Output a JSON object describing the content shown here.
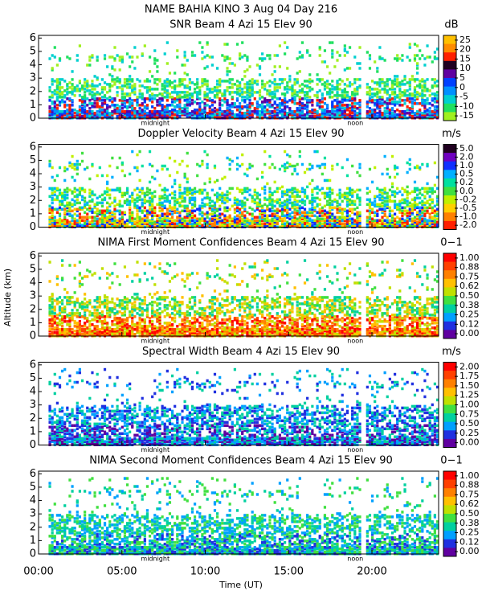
{
  "title": "NAME BAHIA KINO    3 Aug 04 Day 216",
  "xlabel": "Time (UT)",
  "ylabel": "Altitude (km)",
  "xlim": [
    0,
    24
  ],
  "xticks": [
    {
      "value": 0,
      "label": "00:00"
    },
    {
      "value": 5,
      "label": "05:00"
    },
    {
      "value": 10,
      "label": "10:00"
    },
    {
      "value": 15,
      "label": "15:00"
    },
    {
      "value": 20,
      "label": "20:00"
    }
  ],
  "chart_data": [
    {
      "type": "heatmap",
      "title": "SNR Beam 4 Azi   15 Elev 90",
      "colorbar_unit": "dB",
      "ylim": [
        0,
        6.2
      ],
      "yticks": [
        0,
        1,
        2,
        3,
        4,
        5,
        6
      ],
      "colorbar_ticks": [
        25,
        20,
        15,
        10,
        5,
        0,
        -5,
        -10,
        -15
      ],
      "colorbar_colors": [
        "#ffc000",
        "#ff8c00",
        "#ff2000",
        "#200020",
        "#6000a0",
        "#0040ff",
        "#0090ff",
        "#00d0d0",
        "#20e060",
        "#a0f020"
      ],
      "annotations": [
        {
          "text": "midnight",
          "x": 7
        },
        {
          "text": "noon",
          "x": 19
        }
      ]
    },
    {
      "type": "heatmap",
      "title": "Doppler Velocity Beam 4 Azi   15 Elev 90",
      "colorbar_unit": "m/s",
      "ylim": [
        0,
        6.2
      ],
      "yticks": [
        0,
        1,
        2,
        3,
        4,
        5,
        6
      ],
      "colorbar_ticks": [
        {
          "value": 5,
          "label": "5.0"
        },
        {
          "value": 2,
          "label": "2.0"
        },
        {
          "value": 1,
          "label": "1.0"
        },
        {
          "value": 0.5,
          "label": "0.5"
        },
        {
          "value": 0.2,
          "label": "0.2"
        },
        {
          "value": 0,
          "label": "0.0"
        },
        {
          "value": -0.2,
          "label": "-0.2"
        },
        {
          "value": -0.5,
          "label": "-0.5"
        },
        {
          "value": -1,
          "label": "-1.0"
        },
        {
          "value": -2,
          "label": "-2.0"
        }
      ],
      "colorbar_colors": [
        "#200020",
        "#7000c0",
        "#1030ff",
        "#00b0ff",
        "#00e0a0",
        "#40e040",
        "#c0f000",
        "#ffd000",
        "#ff8000",
        "#ff2000"
      ],
      "annotations": [
        {
          "text": "midnight",
          "x": 7
        },
        {
          "text": "noon",
          "x": 19
        }
      ]
    },
    {
      "type": "heatmap",
      "title": "NIMA First Moment Confidences Beam 4 Azi   15 Elev 90",
      "colorbar_unit": "0−1",
      "ylim": [
        0,
        6.2
      ],
      "yticks": [
        0,
        1,
        2,
        3,
        4,
        5,
        6
      ],
      "colorbar_ticks": [
        {
          "value": 1,
          "label": "1.00"
        },
        0.88,
        0.75,
        0.62,
        {
          "value": 0.5,
          "label": "0.50"
        },
        0.38,
        0.25,
        0.12,
        {
          "value": 0,
          "label": "0.00"
        }
      ],
      "colorbar_colors": [
        "#ff0000",
        "#ff4000",
        "#ff8000",
        "#ffc000",
        "#c0e000",
        "#40e040",
        "#00d0a0",
        "#00a0ff",
        "#2030e0",
        "#6000a0"
      ],
      "annotations": [
        {
          "text": "midnight",
          "x": 7
        },
        {
          "text": "noon",
          "x": 19
        }
      ]
    },
    {
      "type": "heatmap",
      "title": "Spectral Width Beam 4 Azi   15 Elev 90",
      "colorbar_unit": "m/s",
      "ylim": [
        0,
        6.2
      ],
      "yticks": [
        0,
        1,
        2,
        3,
        4,
        5,
        6
      ],
      "colorbar_ticks": [
        {
          "value": 2,
          "label": "2.00"
        },
        1.75,
        {
          "value": 1.5,
          "label": "1.50"
        },
        1.25,
        {
          "value": 1,
          "label": "1.00"
        },
        0.75,
        {
          "value": 0.5,
          "label": "0.50"
        },
        0.25,
        {
          "value": 0,
          "label": "0.00"
        }
      ],
      "colorbar_colors": [
        "#ff0000",
        "#ff4000",
        "#ff8000",
        "#ffc000",
        "#c0e000",
        "#40e040",
        "#00d0a0",
        "#00a0ff",
        "#2030e0",
        "#6000a0"
      ],
      "annotations": [
        {
          "text": "midnight",
          "x": 7
        },
        {
          "text": "noon",
          "x": 19
        }
      ]
    },
    {
      "type": "heatmap",
      "title": "NIMA Second Moment Confidences Beam 4 Azi   15 Elev 90",
      "colorbar_unit": "0−1",
      "ylim": [
        0,
        6.2
      ],
      "yticks": [
        0,
        1,
        2,
        3,
        4,
        5,
        6
      ],
      "colorbar_ticks": [
        {
          "value": 1,
          "label": "1.00"
        },
        0.88,
        0.75,
        0.62,
        {
          "value": 0.5,
          "label": "0.50"
        },
        0.38,
        0.25,
        0.12,
        {
          "value": 0,
          "label": "0.00"
        }
      ],
      "colorbar_colors": [
        "#ff0000",
        "#ff4000",
        "#ff8000",
        "#ffc000",
        "#c0e000",
        "#40e040",
        "#00d0a0",
        "#00a0ff",
        "#2030e0",
        "#6000a0"
      ],
      "annotations": [
        {
          "text": "midnight",
          "x": 7
        },
        {
          "text": "noon",
          "x": 19
        }
      ]
    }
  ]
}
